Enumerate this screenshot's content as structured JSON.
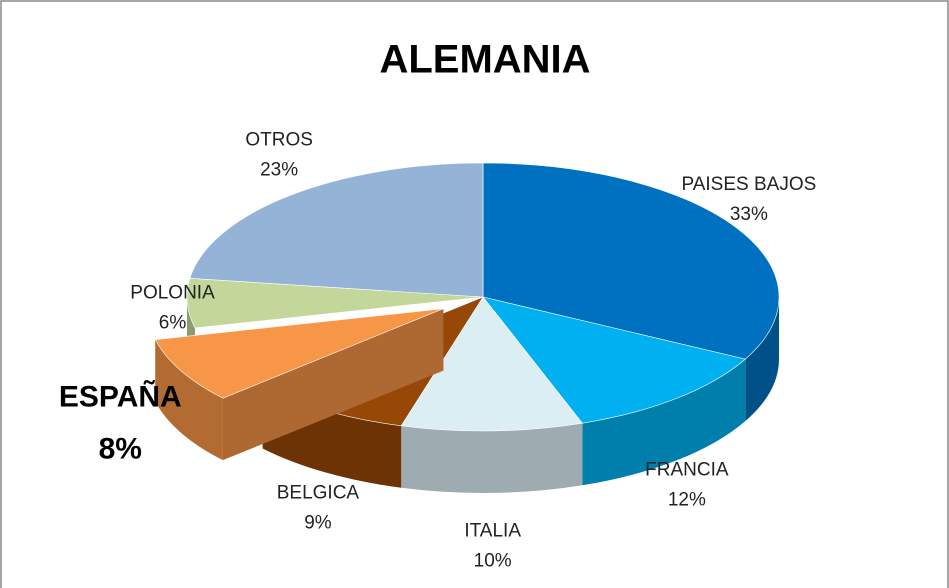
{
  "chart_data": {
    "type": "pie3d",
    "title": "ALEMANIA",
    "categories": [
      "PAISES BAJOS",
      "FRANCIA",
      "ITALIA",
      "BELGICA",
      "ESPAÑA",
      "POLONIA",
      "OTROS"
    ],
    "values": [
      33,
      12,
      10,
      9,
      8,
      6,
      23
    ],
    "value_labels": [
      "33%",
      "12%",
      "10%",
      "9%",
      "8%",
      "6%",
      "23%"
    ],
    "colors": [
      "#0070c0",
      "#00b0f0",
      "#dbeef4",
      "#974706",
      "#f79646",
      "#c4d79b",
      "#95b3d7"
    ],
    "exploded": [
      false,
      false,
      false,
      false,
      true,
      false,
      false
    ]
  }
}
